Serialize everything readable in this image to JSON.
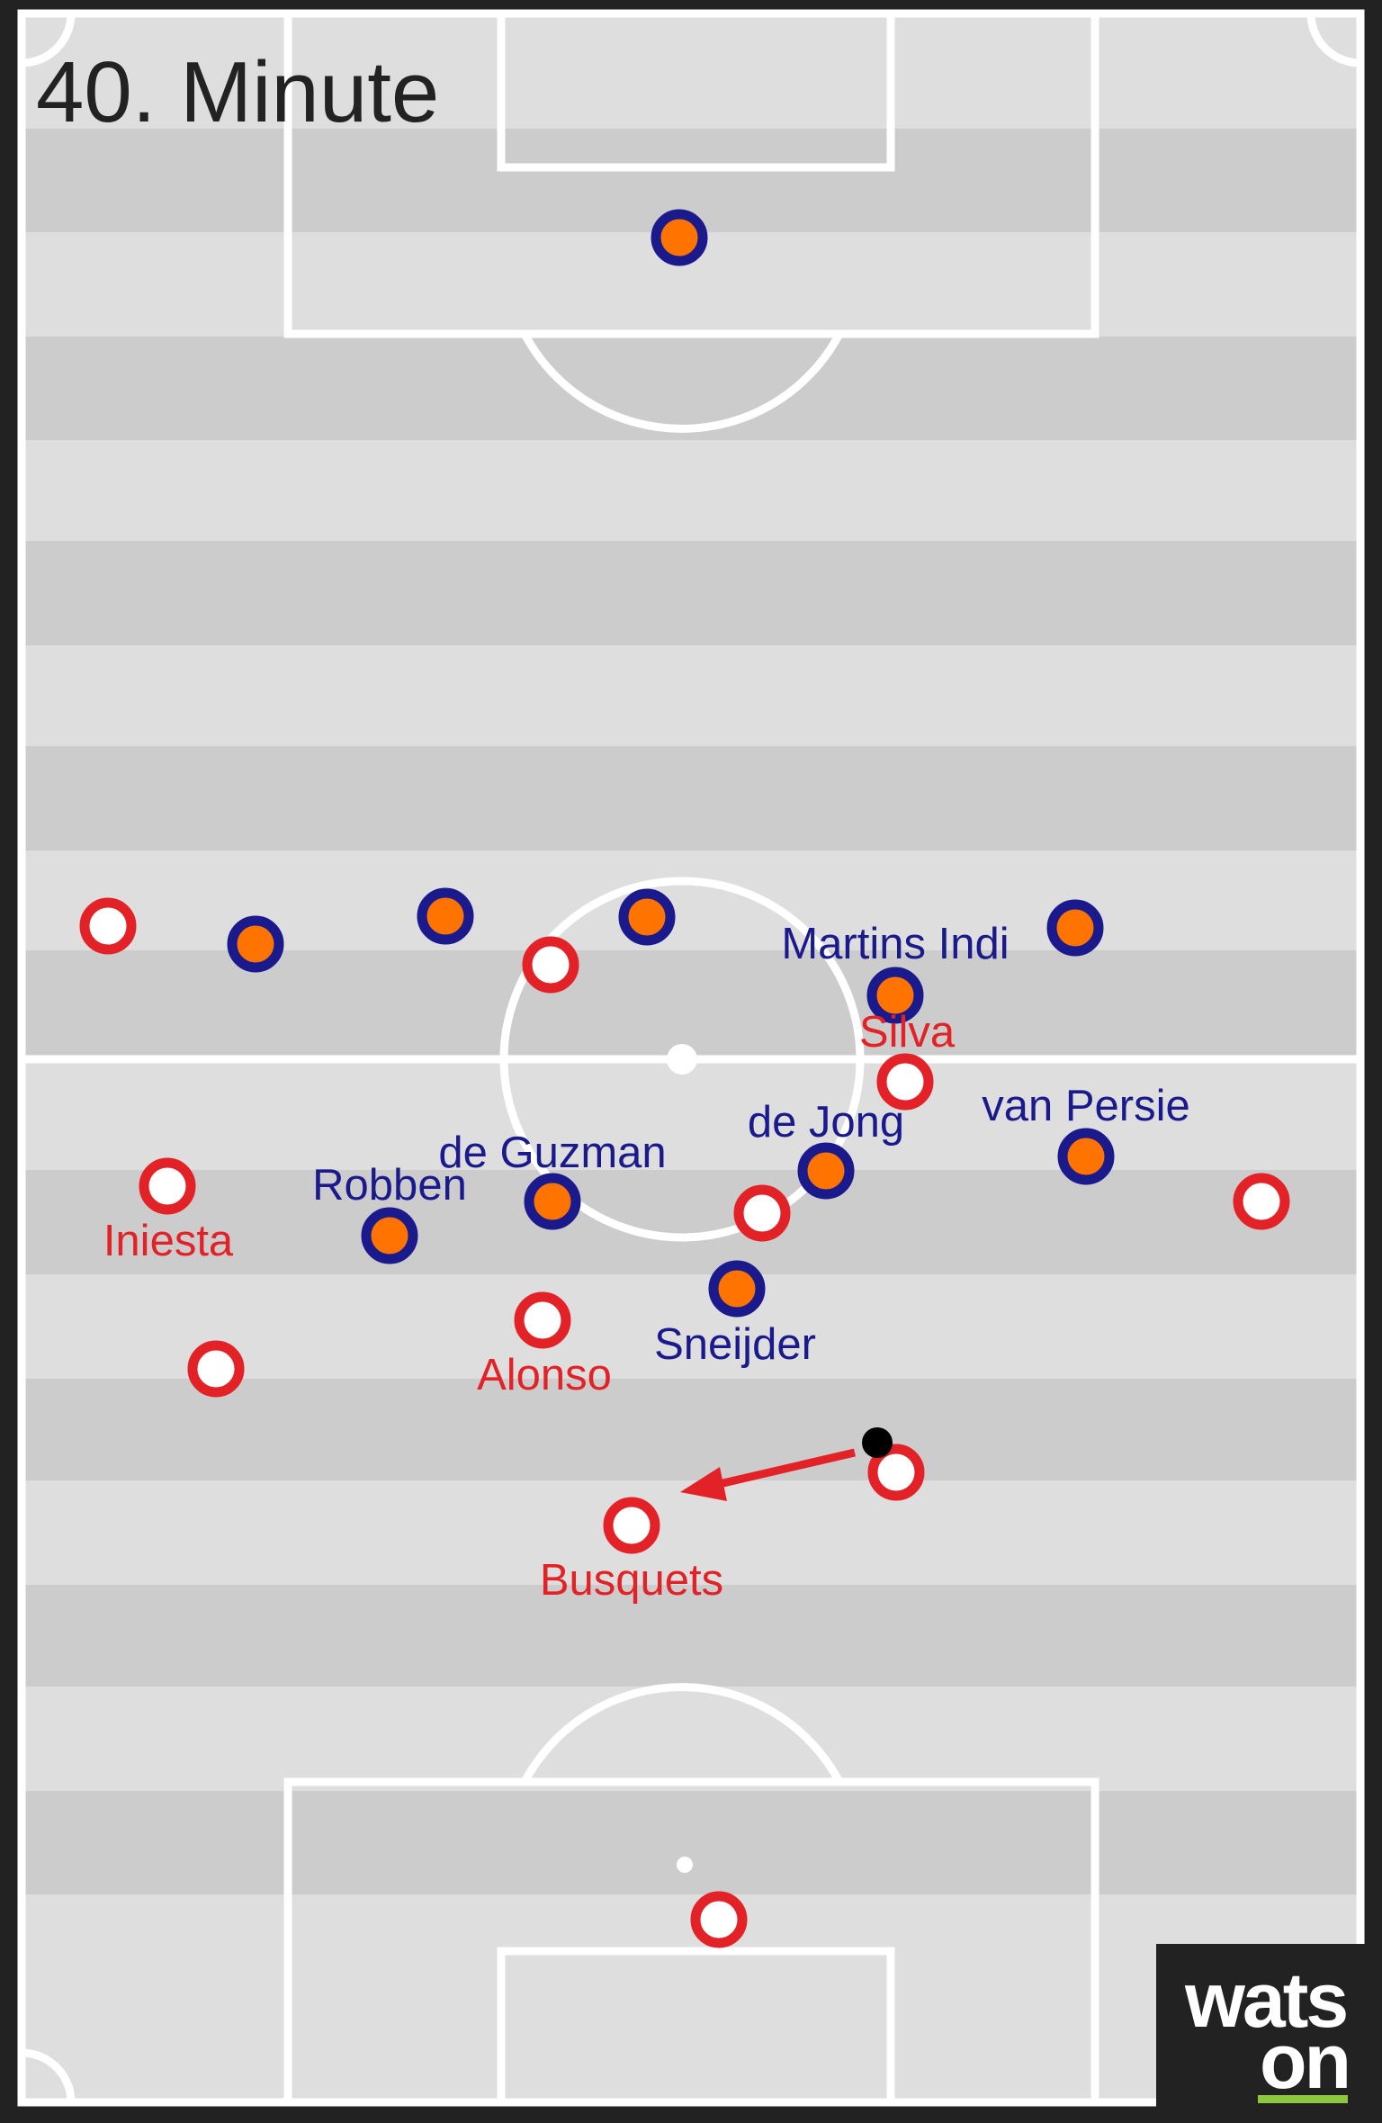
{
  "title": "40. Minute",
  "colors": {
    "stripe_light": "#dedede",
    "stripe_dark": "#cccccc",
    "lines": "#ffffff",
    "border": "#222222",
    "team_blue_ring": "#1a1a8c",
    "team_blue_fill": "#ff7300",
    "team_red_ring": "#e32228",
    "team_red_fill": "#ffffff",
    "ball": "#000000",
    "arrow": "#e32228",
    "logo_bg": "#222222",
    "logo_underline": "#8dc63f"
  },
  "blue_players": [
    {
      "name": ""
    },
    {
      "name": ""
    },
    {
      "name": ""
    },
    {
      "name": ""
    },
    {
      "name": ""
    },
    {
      "name": "Martins Indi"
    },
    {
      "name": "de Jong"
    },
    {
      "name": "van Persie"
    },
    {
      "name": "de Guzman"
    },
    {
      "name": "Robben"
    },
    {
      "name": "Sneijder"
    }
  ],
  "red_players": [
    {
      "name": ""
    },
    {
      "name": ""
    },
    {
      "name": "Silva"
    },
    {
      "name": "Iniesta"
    },
    {
      "name": ""
    },
    {
      "name": ""
    },
    {
      "name": "Alonso"
    },
    {
      "name": ""
    },
    {
      "name": ""
    },
    {
      "name": "Busquets"
    },
    {
      "name": ""
    }
  ],
  "logo": {
    "line1": "wats",
    "line2": "on"
  }
}
